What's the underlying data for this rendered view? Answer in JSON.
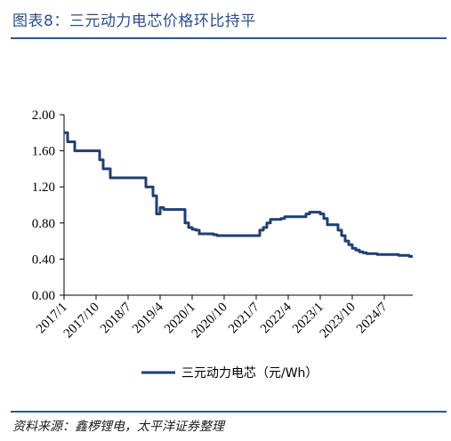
{
  "header": {
    "title": "图表8：三元动力电芯价格环比持平"
  },
  "footer": {
    "source_label": "资料来源：",
    "source_text": "鑫椤锂电，太平洋证券整理"
  },
  "colors": {
    "series": "#1f3f73",
    "accent": "#2f5597"
  },
  "chart_data": {
    "type": "line",
    "title": "",
    "xlabel": "",
    "ylabel": "",
    "ylim": [
      0,
      2.0
    ],
    "yticks": [
      "2.00",
      "1.60",
      "1.20",
      "0.80",
      "0.40",
      "0.00"
    ],
    "ytick_values": [
      2.0,
      1.6,
      1.2,
      0.8,
      0.4,
      0.0
    ],
    "xticks": [
      "2017/1",
      "2017/10",
      "2018/7",
      "2019/4",
      "2020/1",
      "2020/10",
      "2021/7",
      "2022/4",
      "2023/1",
      "2023/10",
      "2024/7"
    ],
    "xlim": [
      "2017/1",
      "2025/3"
    ],
    "grid": false,
    "legend_position": "bottom",
    "series": [
      {
        "name": "三元动力电芯（元/Wh）",
        "x": [
          "2017/1",
          "2017/2",
          "2017/3",
          "2017/4",
          "2017/5",
          "2017/6",
          "2017/7",
          "2017/8",
          "2017/9",
          "2017/10",
          "2017/11",
          "2017/12",
          "2018/1",
          "2018/2",
          "2018/3",
          "2018/4",
          "2018/5",
          "2018/6",
          "2018/7",
          "2018/8",
          "2018/9",
          "2018/10",
          "2018/11",
          "2018/12",
          "2019/1",
          "2019/2",
          "2019/3",
          "2019/4",
          "2019/5",
          "2019/6",
          "2019/7",
          "2019/8",
          "2019/9",
          "2019/10",
          "2019/11",
          "2019/12",
          "2020/1",
          "2020/2",
          "2020/3",
          "2020/4",
          "2020/5",
          "2020/6",
          "2020/7",
          "2020/8",
          "2020/9",
          "2020/10",
          "2020/11",
          "2020/12",
          "2021/1",
          "2021/2",
          "2021/3",
          "2021/4",
          "2021/5",
          "2021/6",
          "2021/7",
          "2021/8",
          "2021/9",
          "2021/10",
          "2021/11",
          "2021/12",
          "2022/1",
          "2022/2",
          "2022/3",
          "2022/4",
          "2022/5",
          "2022/6",
          "2022/7",
          "2022/8",
          "2022/9",
          "2022/10",
          "2022/11",
          "2022/12",
          "2023/1",
          "2023/2",
          "2023/3",
          "2023/4",
          "2023/5",
          "2023/6",
          "2023/7",
          "2023/8",
          "2023/9",
          "2023/10",
          "2023/11",
          "2023/12",
          "2024/1",
          "2024/2",
          "2024/3",
          "2024/4",
          "2024/5",
          "2024/6",
          "2024/7",
          "2024/8",
          "2024/9",
          "2024/10",
          "2024/11",
          "2024/12",
          "2025/1",
          "2025/2",
          "2025/3"
        ],
        "values": [
          1.8,
          1.7,
          1.7,
          1.6,
          1.6,
          1.6,
          1.6,
          1.6,
          1.6,
          1.6,
          1.5,
          1.4,
          1.4,
          1.3,
          1.3,
          1.3,
          1.3,
          1.3,
          1.3,
          1.3,
          1.3,
          1.3,
          1.3,
          1.2,
          1.2,
          1.1,
          0.9,
          0.97,
          0.95,
          0.95,
          0.95,
          0.95,
          0.95,
          0.95,
          0.8,
          0.75,
          0.73,
          0.72,
          0.68,
          0.68,
          0.68,
          0.68,
          0.67,
          0.66,
          0.66,
          0.66,
          0.66,
          0.66,
          0.66,
          0.66,
          0.66,
          0.66,
          0.66,
          0.66,
          0.66,
          0.72,
          0.75,
          0.8,
          0.84,
          0.84,
          0.84,
          0.85,
          0.87,
          0.87,
          0.87,
          0.87,
          0.87,
          0.87,
          0.9,
          0.92,
          0.92,
          0.92,
          0.9,
          0.85,
          0.78,
          0.78,
          0.78,
          0.72,
          0.66,
          0.6,
          0.56,
          0.52,
          0.5,
          0.48,
          0.47,
          0.46,
          0.46,
          0.46,
          0.45,
          0.45,
          0.45,
          0.45,
          0.45,
          0.45,
          0.44,
          0.44,
          0.44,
          0.43,
          0.43
        ]
      }
    ]
  }
}
